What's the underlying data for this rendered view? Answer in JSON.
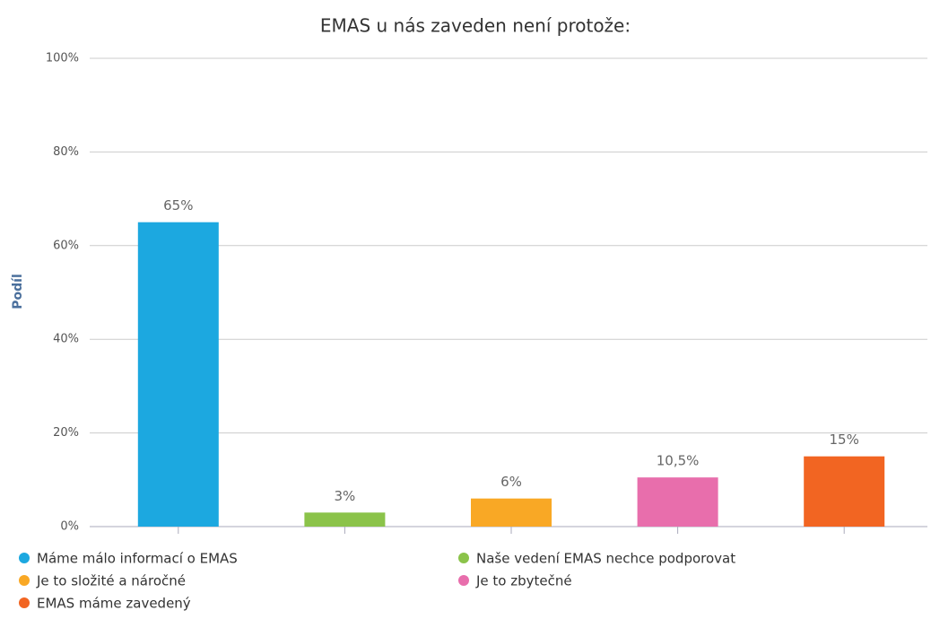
{
  "chart_data": {
    "type": "bar",
    "title": "EMAS u nás zaveden není protože:",
    "y_label": "Podíl",
    "ylim": [
      0,
      100
    ],
    "yticks": [
      {
        "value": 0,
        "label": "0%"
      },
      {
        "value": 20,
        "label": "20%"
      },
      {
        "value": 40,
        "label": "40%"
      },
      {
        "value": 60,
        "label": "60%"
      },
      {
        "value": 80,
        "label": "80%"
      },
      {
        "value": 100,
        "label": "100%"
      }
    ],
    "grid": true,
    "series": [
      {
        "name": "Máme málo informací o EMAS",
        "color": "#1ca8e0",
        "values": [
          65
        ],
        "value_labels": [
          "65%"
        ]
      },
      {
        "name": "Naše vedení EMAS nechce podporovat",
        "color": "#8bc34a",
        "values": [
          3
        ],
        "value_labels": [
          "3%"
        ]
      },
      {
        "name": "Je to složité a náročné",
        "color": "#f9a825",
        "values": [
          6
        ],
        "value_labels": [
          "6%"
        ]
      },
      {
        "name": "Je to zbytečné",
        "color": "#e86eac",
        "values": [
          10.5
        ],
        "value_labels": [
          "10,5%"
        ]
      },
      {
        "name": "EMAS máme zavedený",
        "color": "#f26522",
        "values": [
          15
        ],
        "value_labels": [
          "15%"
        ]
      }
    ]
  }
}
